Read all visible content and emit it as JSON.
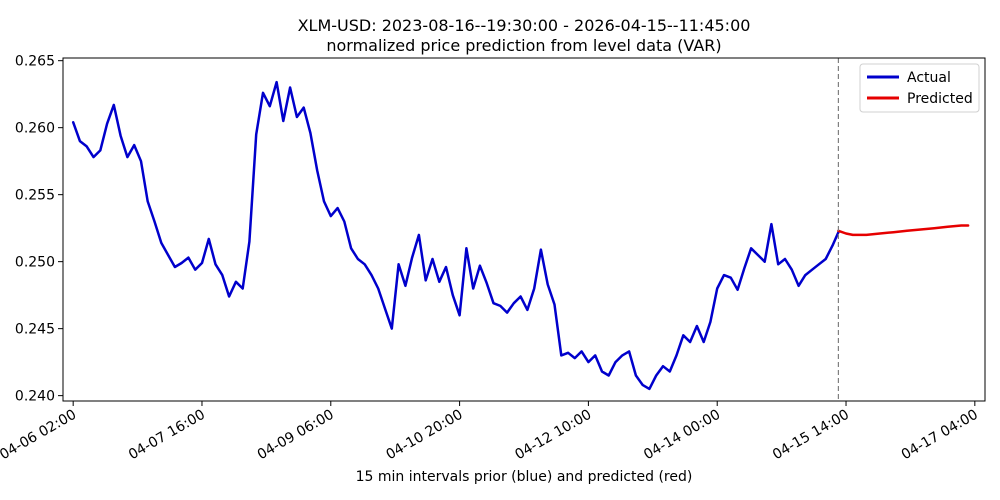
{
  "chart_data": {
    "type": "line",
    "title": "XLM-USD: 2023-08-16--19:30:00 - 2026-04-15--11:45:00",
    "subtitle": "normalized price prediction from level data (VAR)",
    "xlabel": "15 min intervals prior (blue) and predicted (red)",
    "ylabel": "",
    "x_type": "datetime",
    "xlim": [
      "2026-04-05 23:00",
      "2026-04-17 07:00"
    ],
    "ylim": [
      0.2396,
      0.2652
    ],
    "x_ticks": [
      {
        "t": "2026-04-06 02:00",
        "label": "04-06 02:00"
      },
      {
        "t": "2026-04-07 16:00",
        "label": "04-07 16:00"
      },
      {
        "t": "2026-04-09 06:00",
        "label": "04-09 06:00"
      },
      {
        "t": "2026-04-10 20:00",
        "label": "04-10 20:00"
      },
      {
        "t": "2026-04-12 10:00",
        "label": "04-12 10:00"
      },
      {
        "t": "2026-04-14 00:00",
        "label": "04-14 00:00"
      },
      {
        "t": "2026-04-15 14:00",
        "label": "04-15 14:00"
      },
      {
        "t": "2026-04-17 04:00",
        "label": "04-17 04:00"
      }
    ],
    "y_ticks": [
      0.24,
      0.245,
      0.25,
      0.255,
      0.26,
      0.265
    ],
    "y_tick_labels": [
      "0.240",
      "0.245",
      "0.250",
      "0.255",
      "0.260",
      "0.265"
    ],
    "vline": {
      "t": "2026-04-15 11:45",
      "color": "#808080",
      "style": "dashed"
    },
    "grid": false,
    "legend_position": "top-right",
    "series": [
      {
        "name": "Actual",
        "color": "#0000cc",
        "points": [
          [
            "2026-04-06 02:00",
            0.2604
          ],
          [
            "2026-04-06 04:00",
            0.259
          ],
          [
            "2026-04-06 06:00",
            0.2586
          ],
          [
            "2026-04-06 08:00",
            0.2578
          ],
          [
            "2026-04-06 10:00",
            0.2583
          ],
          [
            "2026-04-06 12:00",
            0.2603
          ],
          [
            "2026-04-06 14:00",
            0.2617
          ],
          [
            "2026-04-06 16:00",
            0.2594
          ],
          [
            "2026-04-06 18:00",
            0.2578
          ],
          [
            "2026-04-06 20:00",
            0.2587
          ],
          [
            "2026-04-06 22:00",
            0.2575
          ],
          [
            "2026-04-07 00:00",
            0.2545
          ],
          [
            "2026-04-07 02:00",
            0.253
          ],
          [
            "2026-04-07 04:00",
            0.2514
          ],
          [
            "2026-04-07 06:00",
            0.2505
          ],
          [
            "2026-04-07 08:00",
            0.2496
          ],
          [
            "2026-04-07 10:00",
            0.2499
          ],
          [
            "2026-04-07 12:00",
            0.2503
          ],
          [
            "2026-04-07 14:00",
            0.2494
          ],
          [
            "2026-04-07 16:00",
            0.2499
          ],
          [
            "2026-04-07 18:00",
            0.2517
          ],
          [
            "2026-04-07 20:00",
            0.2498
          ],
          [
            "2026-04-07 22:00",
            0.249
          ],
          [
            "2026-04-08 00:00",
            0.2474
          ],
          [
            "2026-04-08 02:00",
            0.2485
          ],
          [
            "2026-04-08 04:00",
            0.248
          ],
          [
            "2026-04-08 06:00",
            0.2515
          ],
          [
            "2026-04-08 08:00",
            0.2595
          ],
          [
            "2026-04-08 10:00",
            0.2626
          ],
          [
            "2026-04-08 12:00",
            0.2616
          ],
          [
            "2026-04-08 14:00",
            0.2634
          ],
          [
            "2026-04-08 16:00",
            0.2605
          ],
          [
            "2026-04-08 18:00",
            0.263
          ],
          [
            "2026-04-08 20:00",
            0.2608
          ],
          [
            "2026-04-08 22:00",
            0.2615
          ],
          [
            "2026-04-09 00:00",
            0.2596
          ],
          [
            "2026-04-09 02:00",
            0.2568
          ],
          [
            "2026-04-09 04:00",
            0.2545
          ],
          [
            "2026-04-09 06:00",
            0.2534
          ],
          [
            "2026-04-09 08:00",
            0.254
          ],
          [
            "2026-04-09 10:00",
            0.253
          ],
          [
            "2026-04-09 12:00",
            0.251
          ],
          [
            "2026-04-09 14:00",
            0.2502
          ],
          [
            "2026-04-09 16:00",
            0.2498
          ],
          [
            "2026-04-09 18:00",
            0.249
          ],
          [
            "2026-04-09 20:00",
            0.248
          ],
          [
            "2026-04-09 22:00",
            0.2465
          ],
          [
            "2026-04-10 00:00",
            0.245
          ],
          [
            "2026-04-10 02:00",
            0.2498
          ],
          [
            "2026-04-10 04:00",
            0.2482
          ],
          [
            "2026-04-10 06:00",
            0.2503
          ],
          [
            "2026-04-10 08:00",
            0.252
          ],
          [
            "2026-04-10 10:00",
            0.2486
          ],
          [
            "2026-04-10 12:00",
            0.2502
          ],
          [
            "2026-04-10 14:00",
            0.2485
          ],
          [
            "2026-04-10 16:00",
            0.2496
          ],
          [
            "2026-04-10 18:00",
            0.2475
          ],
          [
            "2026-04-10 20:00",
            0.246
          ],
          [
            "2026-04-10 22:00",
            0.251
          ],
          [
            "2026-04-11 00:00",
            0.248
          ],
          [
            "2026-04-11 02:00",
            0.2497
          ],
          [
            "2026-04-11 04:00",
            0.2484
          ],
          [
            "2026-04-11 06:00",
            0.2469
          ],
          [
            "2026-04-11 08:00",
            0.2467
          ],
          [
            "2026-04-11 10:00",
            0.2462
          ],
          [
            "2026-04-11 12:00",
            0.2469
          ],
          [
            "2026-04-11 14:00",
            0.2474
          ],
          [
            "2026-04-11 16:00",
            0.2464
          ],
          [
            "2026-04-11 18:00",
            0.248
          ],
          [
            "2026-04-11 20:00",
            0.2509
          ],
          [
            "2026-04-11 22:00",
            0.2483
          ],
          [
            "2026-04-12 00:00",
            0.2468
          ],
          [
            "2026-04-12 02:00",
            0.243
          ],
          [
            "2026-04-12 04:00",
            0.2432
          ],
          [
            "2026-04-12 06:00",
            0.2428
          ],
          [
            "2026-04-12 08:00",
            0.2433
          ],
          [
            "2026-04-12 10:00",
            0.2425
          ],
          [
            "2026-04-12 12:00",
            0.243
          ],
          [
            "2026-04-12 14:00",
            0.2418
          ],
          [
            "2026-04-12 16:00",
            0.2415
          ],
          [
            "2026-04-12 18:00",
            0.2425
          ],
          [
            "2026-04-12 20:00",
            0.243
          ],
          [
            "2026-04-12 22:00",
            0.2433
          ],
          [
            "2026-04-13 00:00",
            0.2415
          ],
          [
            "2026-04-13 02:00",
            0.2408
          ],
          [
            "2026-04-13 04:00",
            0.2405
          ],
          [
            "2026-04-13 06:00",
            0.2415
          ],
          [
            "2026-04-13 08:00",
            0.2422
          ],
          [
            "2026-04-13 10:00",
            0.2418
          ],
          [
            "2026-04-13 12:00",
            0.243
          ],
          [
            "2026-04-13 14:00",
            0.2445
          ],
          [
            "2026-04-13 16:00",
            0.244
          ],
          [
            "2026-04-13 18:00",
            0.2452
          ],
          [
            "2026-04-13 20:00",
            0.244
          ],
          [
            "2026-04-13 22:00",
            0.2455
          ],
          [
            "2026-04-14 00:00",
            0.248
          ],
          [
            "2026-04-14 02:00",
            0.249
          ],
          [
            "2026-04-14 04:00",
            0.2488
          ],
          [
            "2026-04-14 06:00",
            0.2479
          ],
          [
            "2026-04-14 08:00",
            0.2495
          ],
          [
            "2026-04-14 10:00",
            0.251
          ],
          [
            "2026-04-14 12:00",
            0.2505
          ],
          [
            "2026-04-14 14:00",
            0.25
          ],
          [
            "2026-04-14 16:00",
            0.2528
          ],
          [
            "2026-04-14 18:00",
            0.2498
          ],
          [
            "2026-04-14 20:00",
            0.2502
          ],
          [
            "2026-04-14 22:00",
            0.2494
          ],
          [
            "2026-04-15 00:00",
            0.2482
          ],
          [
            "2026-04-15 02:00",
            0.249
          ],
          [
            "2026-04-15 04:00",
            0.2494
          ],
          [
            "2026-04-15 06:00",
            0.2498
          ],
          [
            "2026-04-15 08:00",
            0.2502
          ],
          [
            "2026-04-15 10:00",
            0.2512
          ],
          [
            "2026-04-15 11:45",
            0.2522
          ]
        ]
      },
      {
        "name": "Predicted",
        "color": "#e60000",
        "points": [
          [
            "2026-04-15 11:45",
            0.2523
          ],
          [
            "2026-04-15 14:00",
            0.2521
          ],
          [
            "2026-04-15 16:00",
            0.252
          ],
          [
            "2026-04-15 20:00",
            0.252
          ],
          [
            "2026-04-16 00:00",
            0.2521
          ],
          [
            "2026-04-16 04:00",
            0.2522
          ],
          [
            "2026-04-16 08:00",
            0.2523
          ],
          [
            "2026-04-16 12:00",
            0.2524
          ],
          [
            "2026-04-16 16:00",
            0.2525
          ],
          [
            "2026-04-16 20:00",
            0.2526
          ],
          [
            "2026-04-17 00:00",
            0.2527
          ],
          [
            "2026-04-17 02:00",
            0.2527
          ]
        ]
      }
    ]
  }
}
